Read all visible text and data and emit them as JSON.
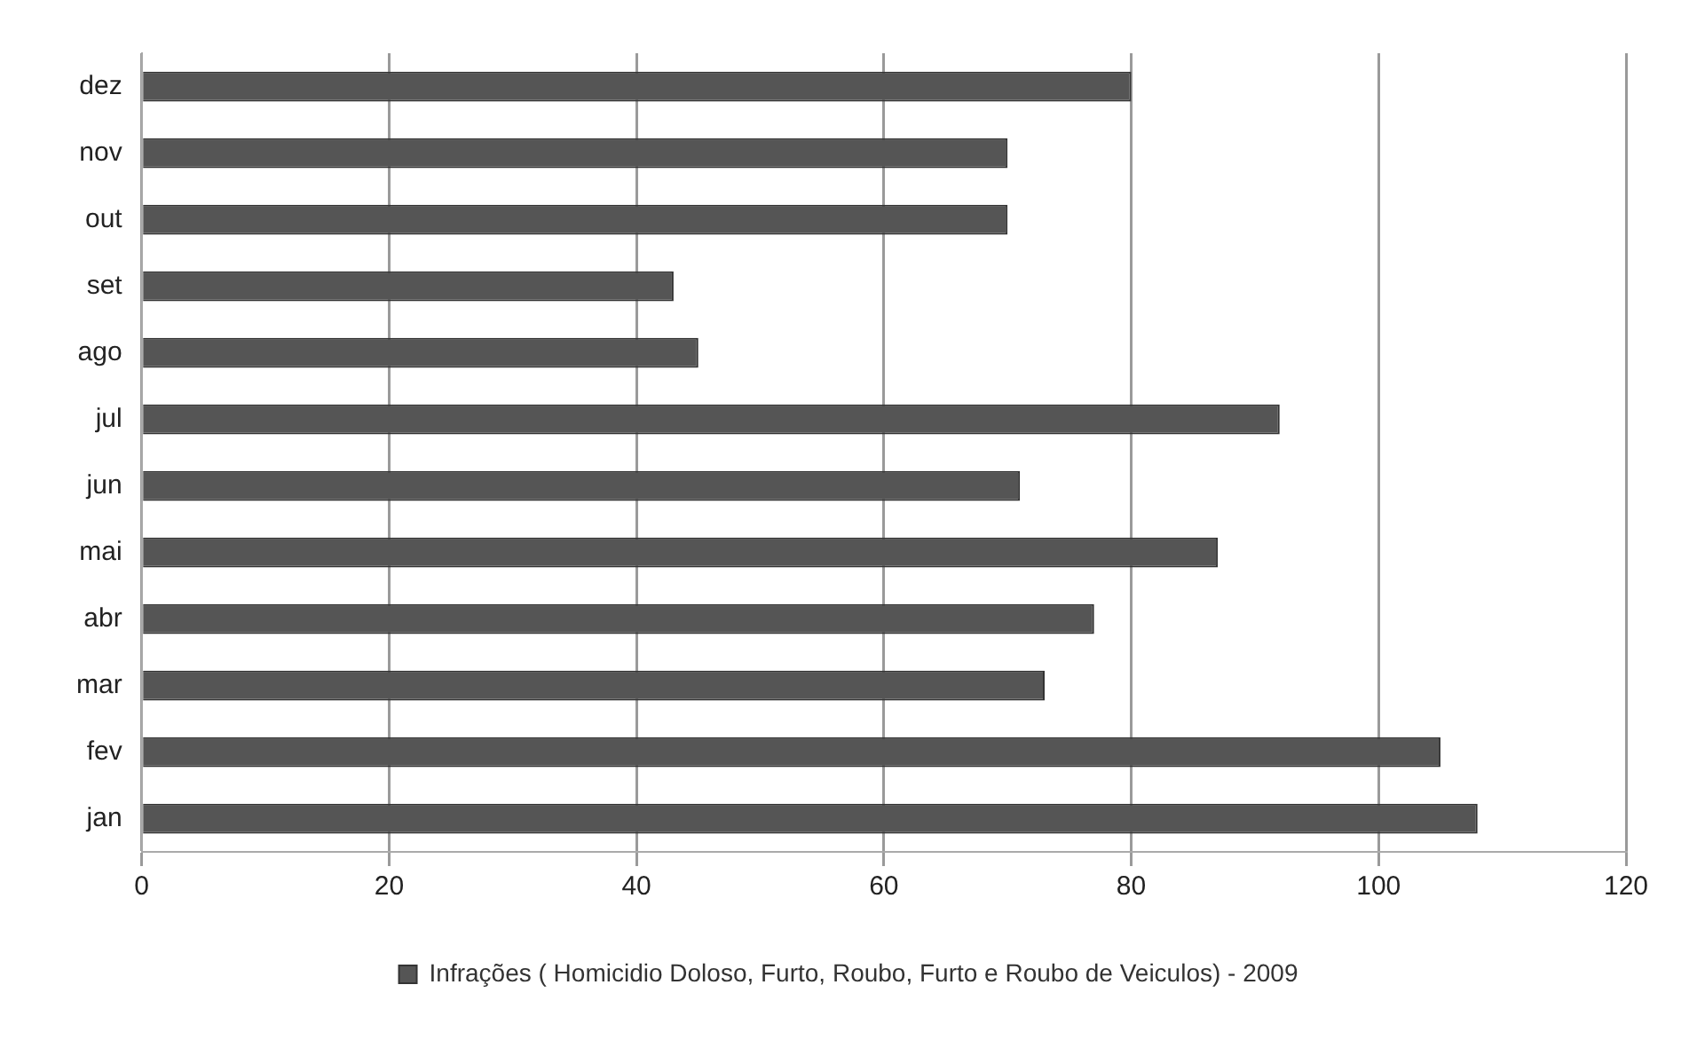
{
  "chart_data": {
    "type": "bar",
    "orientation": "horizontal",
    "categories": [
      "dez",
      "nov",
      "out",
      "set",
      "ago",
      "jul",
      "jun",
      "mai",
      "abr",
      "mar",
      "fev",
      "jan"
    ],
    "series": [
      {
        "name": "Infrações ( Homicidio Doloso, Furto, Roubo, Furto e Roubo de Veiculos) - 2009",
        "color": "#555555",
        "values": [
          80,
          70,
          70,
          43,
          45,
          92,
          71,
          87,
          77,
          73,
          105,
          108
        ]
      }
    ],
    "xlim": [
      0,
      120
    ],
    "xticks": [
      0,
      20,
      40,
      60,
      80,
      100,
      120
    ],
    "grid": "x",
    "legend": "bottom"
  }
}
